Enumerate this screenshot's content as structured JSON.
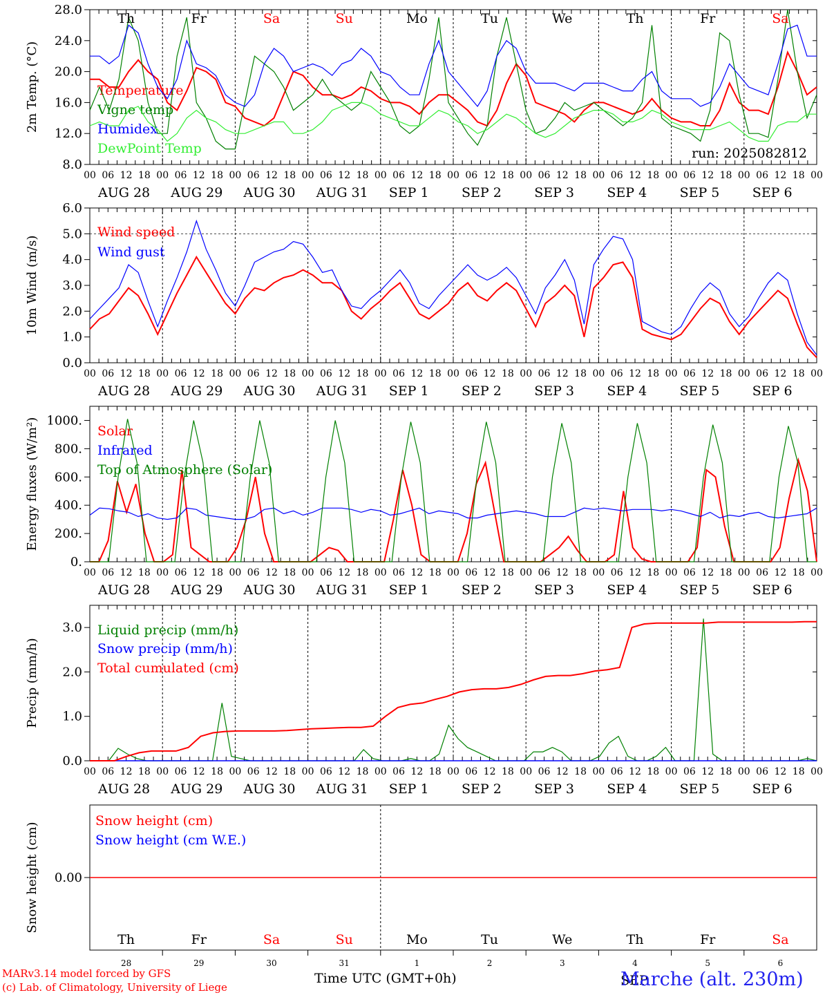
{
  "run_label": "run: 2025082812",
  "footer": {
    "credit_line_1": "MARv3.14 model forced by GFS",
    "credit_line_2": "(c) Lab. of Climatology, University of Liege",
    "x_title": "Time UTC (GMT+0h)",
    "station": "Marche (alt. 230m)"
  },
  "colors": {
    "red": "#ff0000",
    "dark_green": "#008000",
    "blue": "#0000ff",
    "light_green": "#33ee33",
    "weekend": "#ff0000",
    "weekday": "#000000"
  },
  "hour_ticks": [
    "00",
    "06",
    "12",
    "18"
  ],
  "date_labels": [
    "AUG 28",
    "AUG 29",
    "AUG 30",
    "AUG 31",
    "SEP  1",
    "SEP  2",
    "SEP  3",
    "SEP  4",
    "SEP  5",
    "SEP  6"
  ],
  "weekdays": [
    {
      "label": "Th",
      "weekend": false
    },
    {
      "label": "Fr",
      "weekend": false
    },
    {
      "label": "Sa",
      "weekend": true
    },
    {
      "label": "Su",
      "weekend": true
    },
    {
      "label": "Mo",
      "weekend": false
    },
    {
      "label": "Tu",
      "weekend": false
    },
    {
      "label": "We",
      "weekend": false
    },
    {
      "label": "Th",
      "weekend": false
    },
    {
      "label": "Fr",
      "weekend": false
    },
    {
      "label": "Sa",
      "weekend": true
    }
  ],
  "day_numbers": [
    "28",
    "29",
    "30",
    "31",
    "1",
    "2",
    "3",
    "4",
    "5",
    "6"
  ],
  "bottom_month_label": "SEP",
  "chart_data": [
    {
      "type": "line",
      "ylabel": "2m Temp. (°C)",
      "ylim": [
        8,
        28
      ],
      "yticks": [
        "8.0",
        "12.0",
        "16.0",
        "20.0",
        "24.0",
        "28.0"
      ],
      "x": "hours since Aug 28 00 UTC, every 3 h",
      "series": [
        {
          "name": "Temperature",
          "color": "red",
          "values": [
            19,
            19,
            18,
            18,
            20,
            21.5,
            20,
            19,
            16,
            15,
            17.5,
            20.5,
            20,
            19,
            16,
            15.5,
            14,
            13.5,
            13,
            14,
            17,
            20,
            19.5,
            18,
            17,
            17,
            16.5,
            17,
            18,
            17.5,
            16.5,
            16,
            16,
            15.5,
            14.5,
            16,
            17,
            17,
            16,
            15,
            13.5,
            13,
            15,
            18.5,
            21,
            19.5,
            16,
            15.5,
            15,
            14.5,
            13.5,
            15,
            16,
            16,
            15.5,
            15,
            14.5,
            15,
            16.5,
            15,
            14,
            13.5,
            13.5,
            13,
            13,
            15,
            18.5,
            16,
            15,
            15,
            14.5,
            18,
            22.5,
            20,
            17,
            18
          ]
        },
        {
          "name": "Vigne temp",
          "color": "dark_green",
          "values": [
            15,
            18,
            15,
            19,
            27,
            24,
            16,
            12,
            12,
            22,
            27,
            16,
            14,
            11,
            10,
            10,
            16,
            22,
            21,
            20,
            18,
            15,
            16,
            17,
            19,
            17,
            16,
            15,
            16,
            20,
            18,
            16,
            13,
            12,
            13,
            19,
            27,
            16,
            14,
            12,
            10.5,
            13,
            22,
            27,
            21,
            15,
            12,
            12.5,
            14,
            16,
            15,
            15.5,
            16,
            15,
            14,
            13,
            14,
            16,
            26,
            14,
            13,
            12.5,
            12,
            11,
            15,
            25,
            24,
            17,
            12,
            12,
            11.5,
            19,
            28,
            20,
            14,
            17
          ]
        },
        {
          "name": "Humidex",
          "color": "blue",
          "values": [
            22,
            22,
            21,
            22,
            26,
            25,
            21,
            18,
            16.5,
            19,
            24,
            21,
            20.5,
            19.5,
            17,
            16,
            15.5,
            17,
            21,
            23,
            22,
            20,
            20.5,
            21,
            20.5,
            19.5,
            21,
            21.5,
            23,
            22,
            20,
            19.5,
            18,
            17,
            17,
            21,
            24,
            20,
            18.5,
            17,
            15.5,
            17.5,
            22,
            24,
            23,
            20,
            18.5,
            18.5,
            18.5,
            18,
            17.5,
            18.5,
            18.5,
            18.5,
            18,
            17.5,
            17.5,
            19,
            20,
            17.5,
            16.5,
            16.5,
            16.5,
            15.5,
            16,
            18,
            21,
            19.5,
            18,
            17.5,
            17,
            21,
            25.5,
            26,
            22,
            22
          ]
        },
        {
          "name": "DewPoint Temp",
          "color": "light_green",
          "values": [
            13,
            13.5,
            13,
            13,
            15,
            15.5,
            13.5,
            12.5,
            11,
            12,
            14,
            15,
            14,
            13.5,
            12.5,
            12,
            12,
            12.5,
            13,
            13.5,
            13.5,
            12,
            12,
            12.5,
            13.5,
            15,
            15.5,
            16,
            16,
            15.5,
            14.5,
            14,
            13.5,
            13,
            13,
            14,
            15,
            14.5,
            13.5,
            13,
            12,
            12.5,
            13.5,
            14.5,
            14,
            13,
            12,
            11.5,
            12,
            13,
            14,
            14.5,
            15,
            15,
            14.5,
            13.5,
            13.5,
            14,
            15,
            14.5,
            13.5,
            13,
            12.5,
            12.5,
            12.5,
            13,
            13.5,
            12.5,
            11.5,
            11,
            11,
            13,
            13.5,
            13.5,
            14.5,
            14.5
          ]
        }
      ]
    },
    {
      "type": "line",
      "ylabel": "10m Wind (m/s)",
      "ylim": [
        0,
        6
      ],
      "yticks": [
        "0.0",
        "1.0",
        "2.0",
        "3.0",
        "4.0",
        "5.0",
        "6.0"
      ],
      "reference_line": 5,
      "series": [
        {
          "name": "Wind speed",
          "color": "red",
          "values": [
            1.3,
            1.7,
            1.9,
            2.4,
            2.9,
            2.6,
            1.9,
            1.1,
            1.9,
            2.7,
            3.4,
            4.1,
            3.5,
            2.9,
            2.3,
            1.9,
            2.5,
            2.9,
            2.8,
            3.1,
            3.3,
            3.4,
            3.6,
            3.4,
            3.1,
            3.1,
            2.8,
            2,
            1.7,
            2.1,
            2.4,
            2.8,
            3.1,
            2.5,
            1.9,
            1.7,
            2,
            2.3,
            2.8,
            3.1,
            2.6,
            2.4,
            2.8,
            3.1,
            2.8,
            2.1,
            1.4,
            2.3,
            2.6,
            3,
            2.6,
            1,
            2.9,
            3.3,
            3.8,
            3.9,
            3.3,
            1.3,
            1.1,
            1,
            0.9,
            1.1,
            1.6,
            2.1,
            2.5,
            2.3,
            1.6,
            1.1,
            1.6,
            2,
            2.4,
            2.8,
            2.5,
            1.5,
            0.6,
            0.2
          ]
        },
        {
          "name": "Wind gust",
          "color": "blue",
          "values": [
            1.7,
            2.1,
            2.5,
            2.9,
            3.8,
            3.5,
            2.4,
            1.4,
            2.4,
            3.3,
            4.3,
            5.5,
            4.4,
            3.6,
            2.7,
            2.2,
            3,
            3.9,
            4.1,
            4.3,
            4.4,
            4.7,
            4.6,
            4.1,
            3.5,
            3.6,
            2.8,
            2.2,
            2.1,
            2.5,
            2.8,
            3.2,
            3.6,
            3.1,
            2.3,
            2.1,
            2.6,
            3,
            3.4,
            3.8,
            3.4,
            3.2,
            3.4,
            3.7,
            3.3,
            2.6,
            1.9,
            2.9,
            3.4,
            4,
            3.2,
            1.5,
            3.8,
            4.4,
            4.9,
            4.8,
            4,
            1.6,
            1.4,
            1.2,
            1.1,
            1.4,
            2.1,
            2.7,
            3.1,
            2.8,
            1.9,
            1.4,
            1.8,
            2.5,
            3.1,
            3.5,
            3.2,
            1.9,
            0.8,
            0.3
          ]
        }
      ]
    },
    {
      "type": "line",
      "ylabel": "Energy fluxes (W/m²)",
      "ylim": [
        0,
        1100
      ],
      "yticks": [
        "0.",
        "200.",
        "400.",
        "600.",
        "800.",
        "1000."
      ],
      "series": [
        {
          "name": "Solar",
          "color": "red",
          "values": [
            0,
            0,
            150,
            570,
            350,
            550,
            200,
            0,
            0,
            50,
            650,
            100,
            50,
            0,
            0,
            0,
            100,
            300,
            600,
            200,
            0,
            0,
            0,
            0,
            0,
            50,
            100,
            80,
            0,
            0,
            0,
            0,
            0,
            300,
            650,
            400,
            50,
            0,
            0,
            0,
            0,
            200,
            550,
            700,
            350,
            0,
            0,
            0,
            0,
            0,
            50,
            100,
            180,
            80,
            0,
            0,
            0,
            50,
            500,
            100,
            20,
            0,
            0,
            0,
            0,
            0,
            100,
            650,
            600,
            250,
            0,
            0,
            0,
            0,
            0,
            100,
            450,
            720,
            500,
            0
          ]
        },
        {
          "name": "Infrared",
          "color": "blue",
          "values": [
            330,
            380,
            375,
            360,
            350,
            320,
            340,
            310,
            300,
            310,
            380,
            370,
            330,
            320,
            310,
            300,
            300,
            320,
            370,
            380,
            340,
            360,
            330,
            350,
            380,
            380,
            380,
            370,
            350,
            370,
            360,
            330,
            340,
            360,
            380,
            340,
            360,
            350,
            340,
            310,
            310,
            330,
            340,
            350,
            360,
            350,
            340,
            320,
            320,
            320,
            350,
            380,
            370,
            380,
            370,
            360,
            370,
            370,
            370,
            360,
            370,
            360,
            340,
            320,
            350,
            310,
            330,
            320,
            340,
            350,
            320,
            310,
            320,
            330,
            340,
            380
          ]
        },
        {
          "name": "Top of Atmosphere (Solar)",
          "color": "dark_green",
          "values": [
            0,
            0,
            0,
            600,
            1010,
            700,
            0,
            0,
            0,
            0,
            600,
            1000,
            700,
            0,
            0,
            0,
            0,
            600,
            1000,
            700,
            0,
            0,
            0,
            0,
            0,
            600,
            1000,
            700,
            0,
            0,
            0,
            0,
            0,
            600,
            990,
            700,
            0,
            0,
            0,
            0,
            0,
            600,
            990,
            700,
            0,
            0,
            0,
            0,
            0,
            600,
            980,
            700,
            0,
            0,
            0,
            0,
            0,
            600,
            980,
            700,
            0,
            0,
            0,
            0,
            0,
            600,
            970,
            700,
            0,
            0,
            0,
            0,
            0,
            600,
            960,
            700,
            0,
            0
          ]
        }
      ]
    },
    {
      "type": "line",
      "ylabel": "Precip (mm/h)",
      "ylim": [
        0,
        3.5
      ],
      "yticks": [
        "0.0",
        "1.0",
        "2.0",
        "3.0"
      ],
      "series": [
        {
          "name": "Liquid precip (mm/h)",
          "color": "dark_green",
          "values": [
            0,
            0,
            0,
            0.28,
            0.15,
            0.05,
            0,
            0,
            0,
            0,
            0,
            0,
            0,
            0,
            1.3,
            0.1,
            0.05,
            0,
            0,
            0,
            0,
            0,
            0,
            0,
            0,
            0,
            0,
            0,
            0,
            0.25,
            0.05,
            0,
            0,
            0,
            0.05,
            0,
            0,
            0.15,
            0.8,
            0.5,
            0.3,
            0.2,
            0.1,
            0,
            0,
            0,
            0,
            0.2,
            0.2,
            0.3,
            0.2,
            0,
            0,
            0,
            0.1,
            0.4,
            0.55,
            0.1,
            0,
            0,
            0.1,
            0.3,
            0,
            0,
            0,
            3.2,
            0.15,
            0,
            0,
            0,
            0,
            0,
            0,
            0,
            0,
            0,
            0.05,
            0
          ]
        },
        {
          "name": "Snow precip (mm/h)",
          "color": "blue",
          "values": [
            0
          ]
        },
        {
          "name": "Total cumulated (cm)",
          "color": "red",
          "values": [
            0,
            0,
            0,
            0.1,
            0.18,
            0.22,
            0.22,
            0.22,
            0.3,
            0.55,
            0.63,
            0.66,
            0.67,
            0.67,
            0.67,
            0.67,
            0.68,
            0.7,
            0.72,
            0.73,
            0.74,
            0.75,
            0.75,
            0.78,
            1,
            1.2,
            1.27,
            1.3,
            1.38,
            1.45,
            1.55,
            1.6,
            1.62,
            1.62,
            1.65,
            1.72,
            1.82,
            1.9,
            1.92,
            1.92,
            1.96,
            2.02,
            2.05,
            2.1,
            3,
            3.08,
            3.1,
            3.1,
            3.1,
            3.1,
            3.1,
            3.12,
            3.12,
            3.12,
            3.12,
            3.12,
            3.12,
            3.12,
            3.13,
            3.13
          ]
        }
      ]
    },
    {
      "type": "line",
      "ylabel": "Snow height (cm)",
      "yticks": [
        "0.00"
      ],
      "series": [
        {
          "name": "Snow height (cm)",
          "color": "red",
          "values": [
            0
          ]
        },
        {
          "name": "Snow height (cm W.E.)",
          "color": "blue",
          "values": [
            0
          ]
        }
      ]
    }
  ]
}
